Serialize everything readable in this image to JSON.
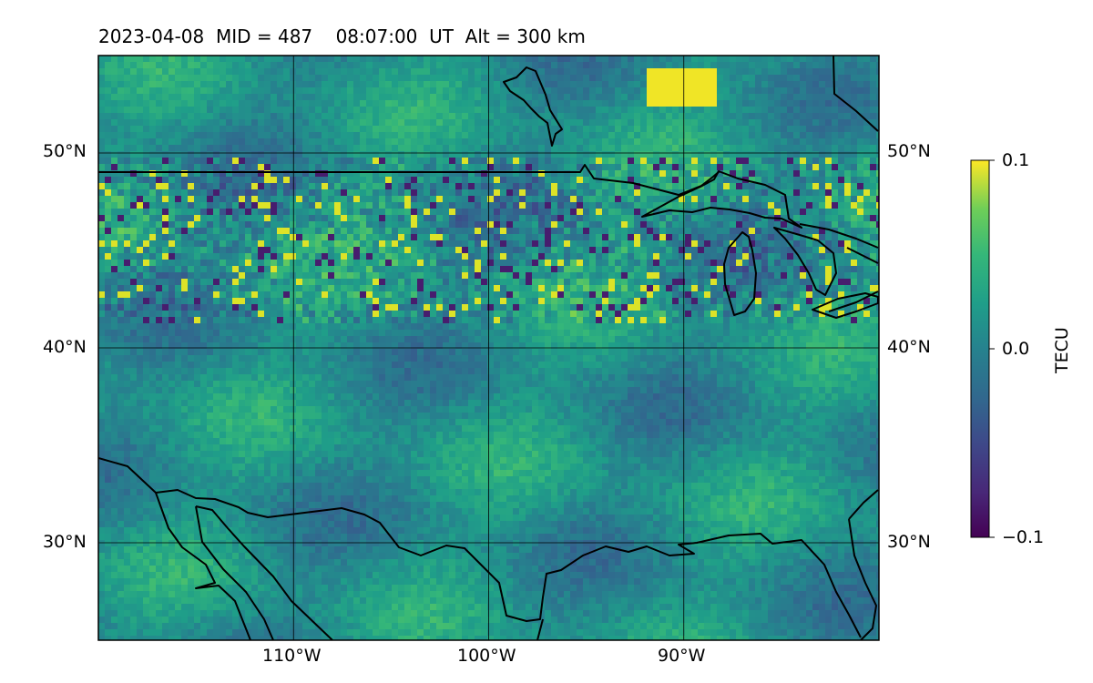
{
  "title": "2023-04-08  MID = 487    08:07:00  UT  Alt = 300 km",
  "map": {
    "lon_range": [
      -120,
      -80
    ],
    "lat_range": [
      25,
      55
    ],
    "lon_ticks": [
      -110,
      -100,
      -90
    ],
    "lat_ticks": [
      30,
      40,
      50
    ],
    "lon_tick_labels": [
      "110°W",
      "100°W",
      "90°W"
    ],
    "lat_tick_labels": [
      "30°N",
      "40°N",
      "50°N"
    ],
    "gridlines": true,
    "coastlines": true
  },
  "colorbar": {
    "label": "TECU",
    "colormap": "viridis",
    "range": [
      -0.1,
      0.1
    ],
    "ticks": [
      0.1,
      0.0,
      -0.1
    ],
    "tick_labels": [
      "0.1",
      "0.0",
      "−0.1"
    ]
  },
  "colors": {
    "viridis_low": "#440154",
    "viridis_mid": "#21918c",
    "viridis_high": "#fde725"
  }
}
